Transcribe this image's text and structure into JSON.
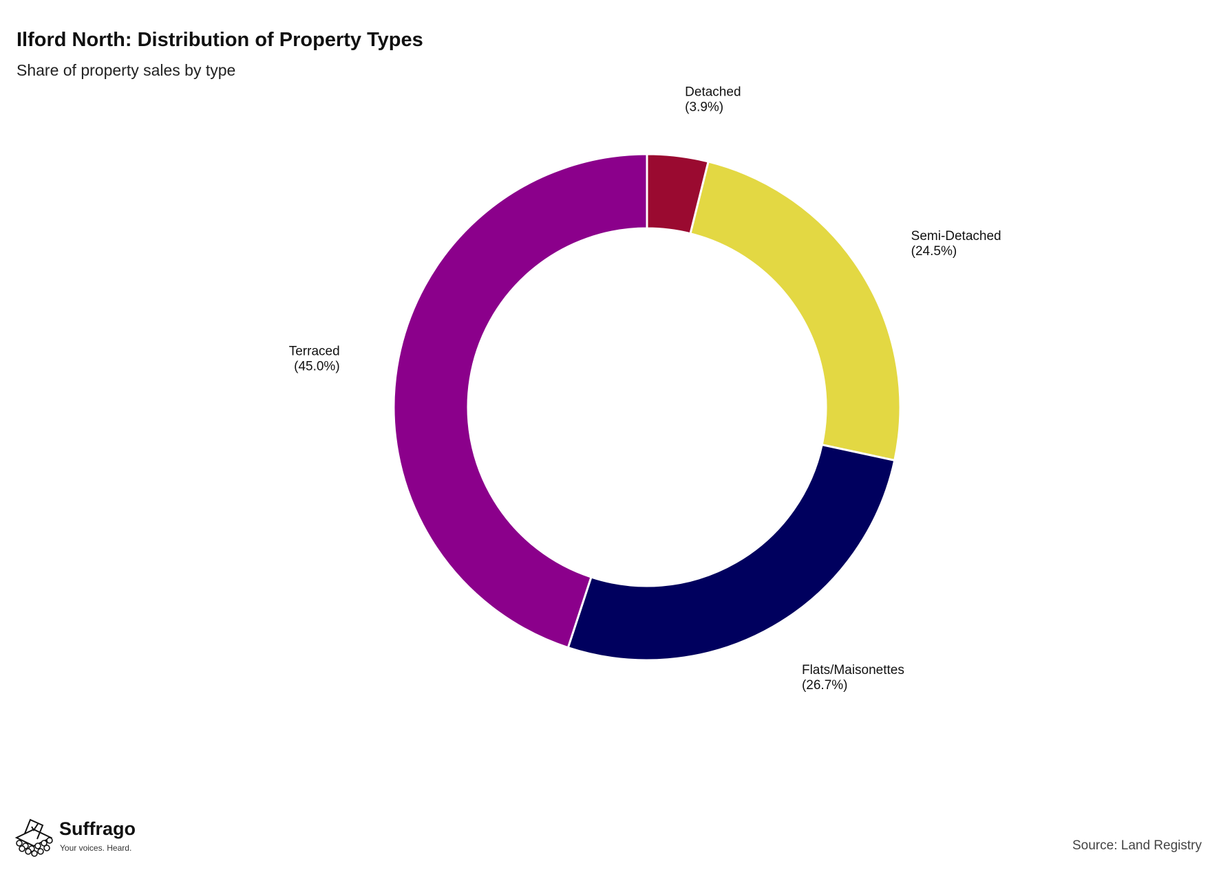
{
  "header": {
    "title": "Ilford North: Distribution of Property Types",
    "subtitle": "Share of property sales by type"
  },
  "chart_data": {
    "type": "pie",
    "donut": true,
    "title": "Ilford North: Distribution of Property Types",
    "subtitle": "Share of property sales by type",
    "start": "top",
    "direction": "clockwise",
    "slices": [
      {
        "label": "Detached",
        "value": 3.9,
        "display": "(3.9%)",
        "color": "#9A0A30"
      },
      {
        "label": "Semi-Detached",
        "value": 24.5,
        "display": "(24.5%)",
        "color": "#E3D843"
      },
      {
        "label": "Flats/Maisonettes",
        "value": 26.7,
        "display": "(26.7%)",
        "color": "#00005E"
      },
      {
        "label": "Terraced",
        "value": 45.0,
        "display": "(45.0%)",
        "color": "#8B008B"
      }
    ]
  },
  "footer": {
    "brand_name": "Suffrago",
    "brand_tagline": "Your voices. Heard.",
    "source": "Source: Land Registry"
  }
}
